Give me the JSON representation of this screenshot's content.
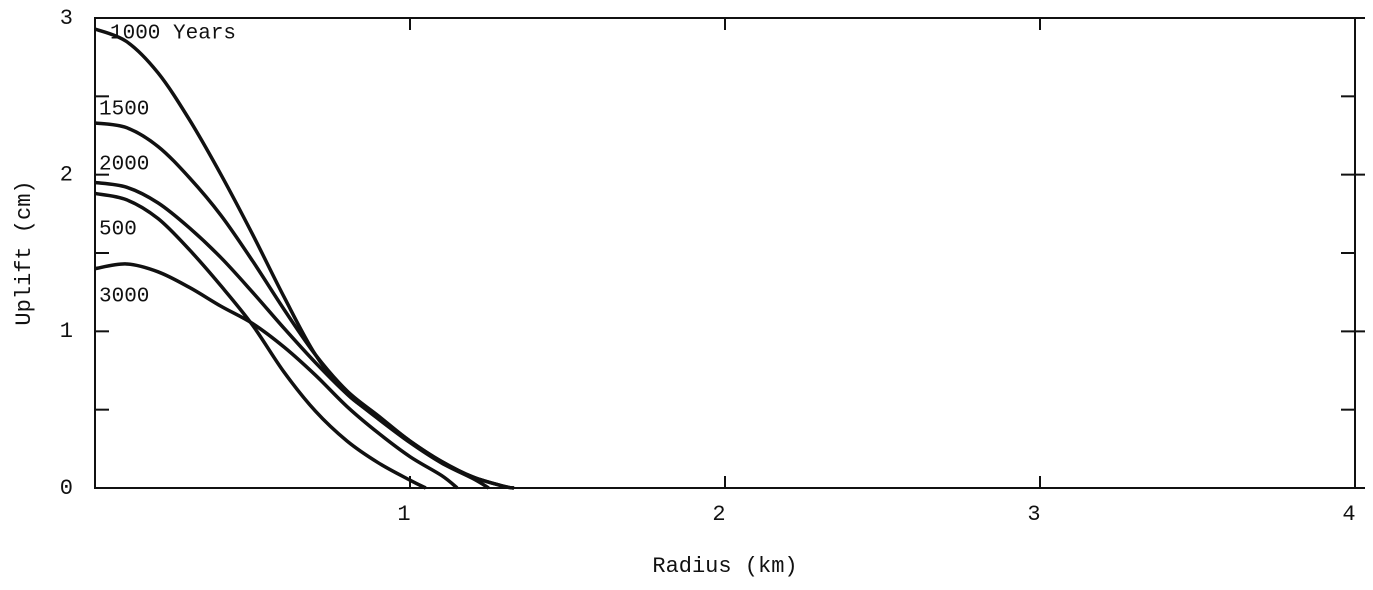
{
  "chart_data": {
    "type": "line",
    "xlabel": "Radius (km)",
    "ylabel": "Uplift (cm)",
    "xlim": [
      0,
      4
    ],
    "xticks": [
      1,
      2,
      3,
      4
    ],
    "ylim": [
      0,
      3
    ],
    "yticks": [
      0,
      1,
      2,
      3
    ],
    "yminor": [
      0.5,
      1.5,
      2.5
    ],
    "series": [
      {
        "name": "1000 Years",
        "color": "#111111",
        "x": [
          0,
          0.1,
          0.2,
          0.3,
          0.4,
          0.5,
          0.6,
          0.7,
          0.8,
          0.9,
          1.0,
          1.1,
          1.2,
          1.3,
          1.33
        ],
        "values": [
          2.93,
          2.85,
          2.65,
          2.35,
          2.0,
          1.62,
          1.22,
          0.85,
          0.6,
          0.45,
          0.3,
          0.17,
          0.07,
          0.01,
          0
        ]
      },
      {
        "name": "1500",
        "color": "#111111",
        "x": [
          0,
          0.1,
          0.2,
          0.3,
          0.4,
          0.5,
          0.6,
          0.7,
          0.8,
          0.9,
          1.0,
          1.1,
          1.2,
          1.3,
          1.33
        ],
        "values": [
          2.33,
          2.3,
          2.18,
          1.98,
          1.74,
          1.45,
          1.14,
          0.85,
          0.62,
          0.46,
          0.3,
          0.17,
          0.07,
          0.01,
          0
        ]
      },
      {
        "name": "2000",
        "color": "#111111",
        "x": [
          0,
          0.1,
          0.2,
          0.3,
          0.4,
          0.5,
          0.6,
          0.7,
          0.8,
          0.9,
          1.0,
          1.1,
          1.2,
          1.25
        ],
        "values": [
          1.95,
          1.92,
          1.82,
          1.66,
          1.47,
          1.25,
          1.02,
          0.8,
          0.6,
          0.44,
          0.29,
          0.16,
          0.06,
          0
        ]
      },
      {
        "name": "500",
        "color": "#111111",
        "x": [
          0,
          0.1,
          0.2,
          0.3,
          0.4,
          0.5,
          0.6,
          0.7,
          0.8,
          0.9,
          1.0,
          1.05
        ],
        "values": [
          1.88,
          1.84,
          1.72,
          1.52,
          1.29,
          1.04,
          0.74,
          0.49,
          0.3,
          0.16,
          0.05,
          0
        ]
      },
      {
        "name": "3000",
        "color": "#111111",
        "x": [
          0,
          0.1,
          0.2,
          0.3,
          0.4,
          0.5,
          0.6,
          0.7,
          0.8,
          0.9,
          1.0,
          1.1,
          1.15
        ],
        "values": [
          1.4,
          1.43,
          1.38,
          1.28,
          1.16,
          1.05,
          0.9,
          0.72,
          0.52,
          0.35,
          0.2,
          0.08,
          0
        ]
      }
    ]
  }
}
